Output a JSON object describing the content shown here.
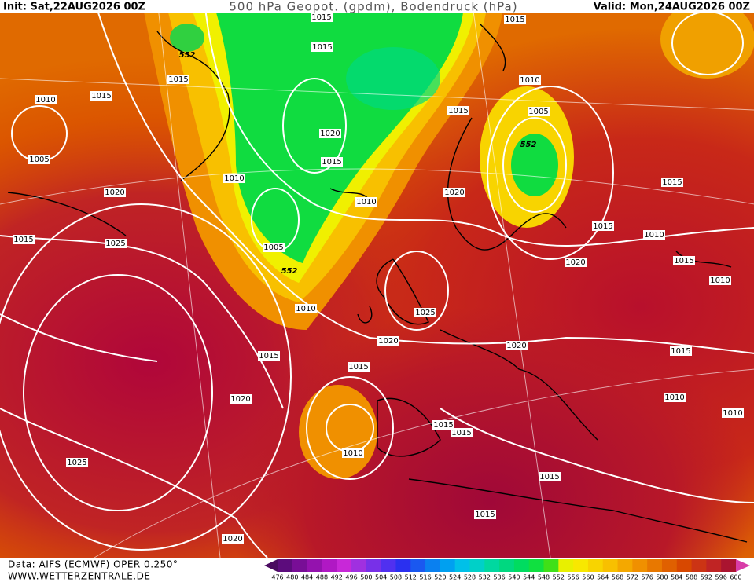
{
  "header": {
    "init": "Init: Sat,22AUG2026 00Z",
    "title": "500 hPa Geopot. (gpdm), Bodendruck (hPa)",
    "valid": "Valid: Mon,24AUG2026 00Z"
  },
  "isobar_labels": [
    "1015",
    "1015",
    "1015",
    "552",
    "1015",
    "1010",
    "1010",
    "1015",
    "1015",
    "1005",
    "1020",
    "552",
    "1005",
    "1015",
    "1010",
    "1015",
    "1020",
    "1020",
    "1010",
    "1015",
    "1010",
    "1015",
    "1025",
    "1005",
    "1015",
    "552",
    "1020",
    "1010",
    "1010",
    "1025",
    "1020",
    "1020",
    "1015",
    "1015",
    "1015",
    "1010",
    "1020",
    "1010",
    "1015",
    "1015",
    "1010",
    "1025",
    "1015",
    "1015",
    "1020"
  ],
  "footer": {
    "source": "Data: AIFS (ECMWF) OPER 0.250°",
    "site": "WWW.WETTERZENTRALE.DE"
  },
  "scale": {
    "labels": [
      "476",
      "480",
      "484",
      "488",
      "492",
      "496",
      "500",
      "504",
      "508",
      "512",
      "516",
      "520",
      "524",
      "528",
      "532",
      "536",
      "540",
      "544",
      "548",
      "552",
      "556",
      "560",
      "564",
      "568",
      "572",
      "576",
      "580",
      "584",
      "588",
      "592",
      "596",
      "600"
    ],
    "colors": [
      "#4a0a60",
      "#5c0c7c",
      "#780e96",
      "#9412ae",
      "#b018c4",
      "#c828d8",
      "#a030e0",
      "#7830e8",
      "#5030f0",
      "#2a30f0",
      "#1a58f0",
      "#0a80f0",
      "#00a0f0",
      "#00c0e8",
      "#00d0c8",
      "#00d8a0",
      "#00d880",
      "#00dc60",
      "#10e040",
      "#40e018",
      "#e8f000",
      "#f8e800",
      "#f8d400",
      "#f8c000",
      "#f4a800",
      "#f09000",
      "#e87800",
      "#e06000",
      "#d84800",
      "#cc3414",
      "#c02424",
      "#aa1430",
      "#980c3a",
      "#d83ca8"
    ]
  }
}
